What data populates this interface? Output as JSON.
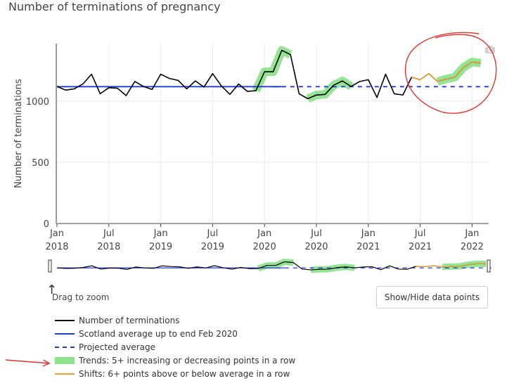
{
  "title": "Number of terminations of pregnancy",
  "chart_data": {
    "type": "line",
    "ylabel": "Number of terminations",
    "ylim": [
      0,
      1470
    ],
    "yticks": [
      0,
      500,
      1000
    ],
    "x_start": "2018-01",
    "xticks": [
      {
        "month_index": 0,
        "line1": "Jan",
        "line2": "2018"
      },
      {
        "month_index": 6,
        "line1": "Jul",
        "line2": "2018"
      },
      {
        "month_index": 12,
        "line1": "Jan",
        "line2": "2019"
      },
      {
        "month_index": 18,
        "line1": "Jul",
        "line2": "2019"
      },
      {
        "month_index": 24,
        "line1": "Jan",
        "line2": "2020"
      },
      {
        "month_index": 30,
        "line1": "Jul",
        "line2": "2020"
      },
      {
        "month_index": 36,
        "line1": "Jan",
        "line2": "2021"
      },
      {
        "month_index": 42,
        "line1": "Jul",
        "line2": "2021"
      },
      {
        "month_index": 48,
        "line1": "Jan",
        "line2": "2022"
      }
    ],
    "series": [
      {
        "name": "Number of terminations",
        "color": "#000000",
        "values": [
          1120,
          1090,
          1100,
          1140,
          1220,
          1060,
          1110,
          1105,
          1045,
          1160,
          1120,
          1095,
          1220,
          1185,
          1170,
          1100,
          1165,
          1115,
          1225,
          1125,
          1055,
          1140,
          1080,
          1085,
          1240,
          1240,
          1415,
          1380,
          1060,
          1020,
          1050,
          1055,
          1130,
          1165,
          1120,
          1160,
          1175,
          1030,
          1220,
          1060,
          1050,
          1195,
          1175,
          1225,
          1160,
          1180,
          1195,
          1275,
          1320,
          1310
        ]
      },
      {
        "name": "Scotland average up to end Feb 2020",
        "color": "#1f3bd6",
        "style": "solid",
        "value": 1118,
        "from": 0,
        "to": 26
      },
      {
        "name": "Projected average",
        "color": "#1f3bd6",
        "style": "dash",
        "value": 1118,
        "from": 26,
        "to": 51
      },
      {
        "name": "Trends: 5+ increasing or decreasing points in a row",
        "color": "#8fe38f",
        "segments": [
          [
            23,
            27
          ],
          [
            29,
            34
          ],
          [
            44,
            49
          ]
        ]
      },
      {
        "name": "Shifts: 6+ points above or below average in a row",
        "color": "#f0a030",
        "segments": [
          [
            41,
            49
          ]
        ]
      }
    ],
    "grid": true
  },
  "controls": {
    "drag_hint": "Drag to zoom",
    "toggle_button": "Show/Hide data points"
  },
  "legend": [
    {
      "label": "Number of terminations",
      "kind": "line",
      "color": "#000000"
    },
    {
      "label": "Scotland average up to end Feb 2020",
      "kind": "line",
      "color": "#1f3bd6"
    },
    {
      "label": "Projected average",
      "kind": "dash",
      "color": "#1f3bd6"
    },
    {
      "label": "Trends: 5+ increasing or decreasing points in a row",
      "kind": "band",
      "color": "#8fe38f"
    },
    {
      "label": "Shifts: 6+ points above or below average in a row",
      "kind": "line",
      "color": "#f0a030"
    }
  ],
  "annotation_color": "#e8322f"
}
